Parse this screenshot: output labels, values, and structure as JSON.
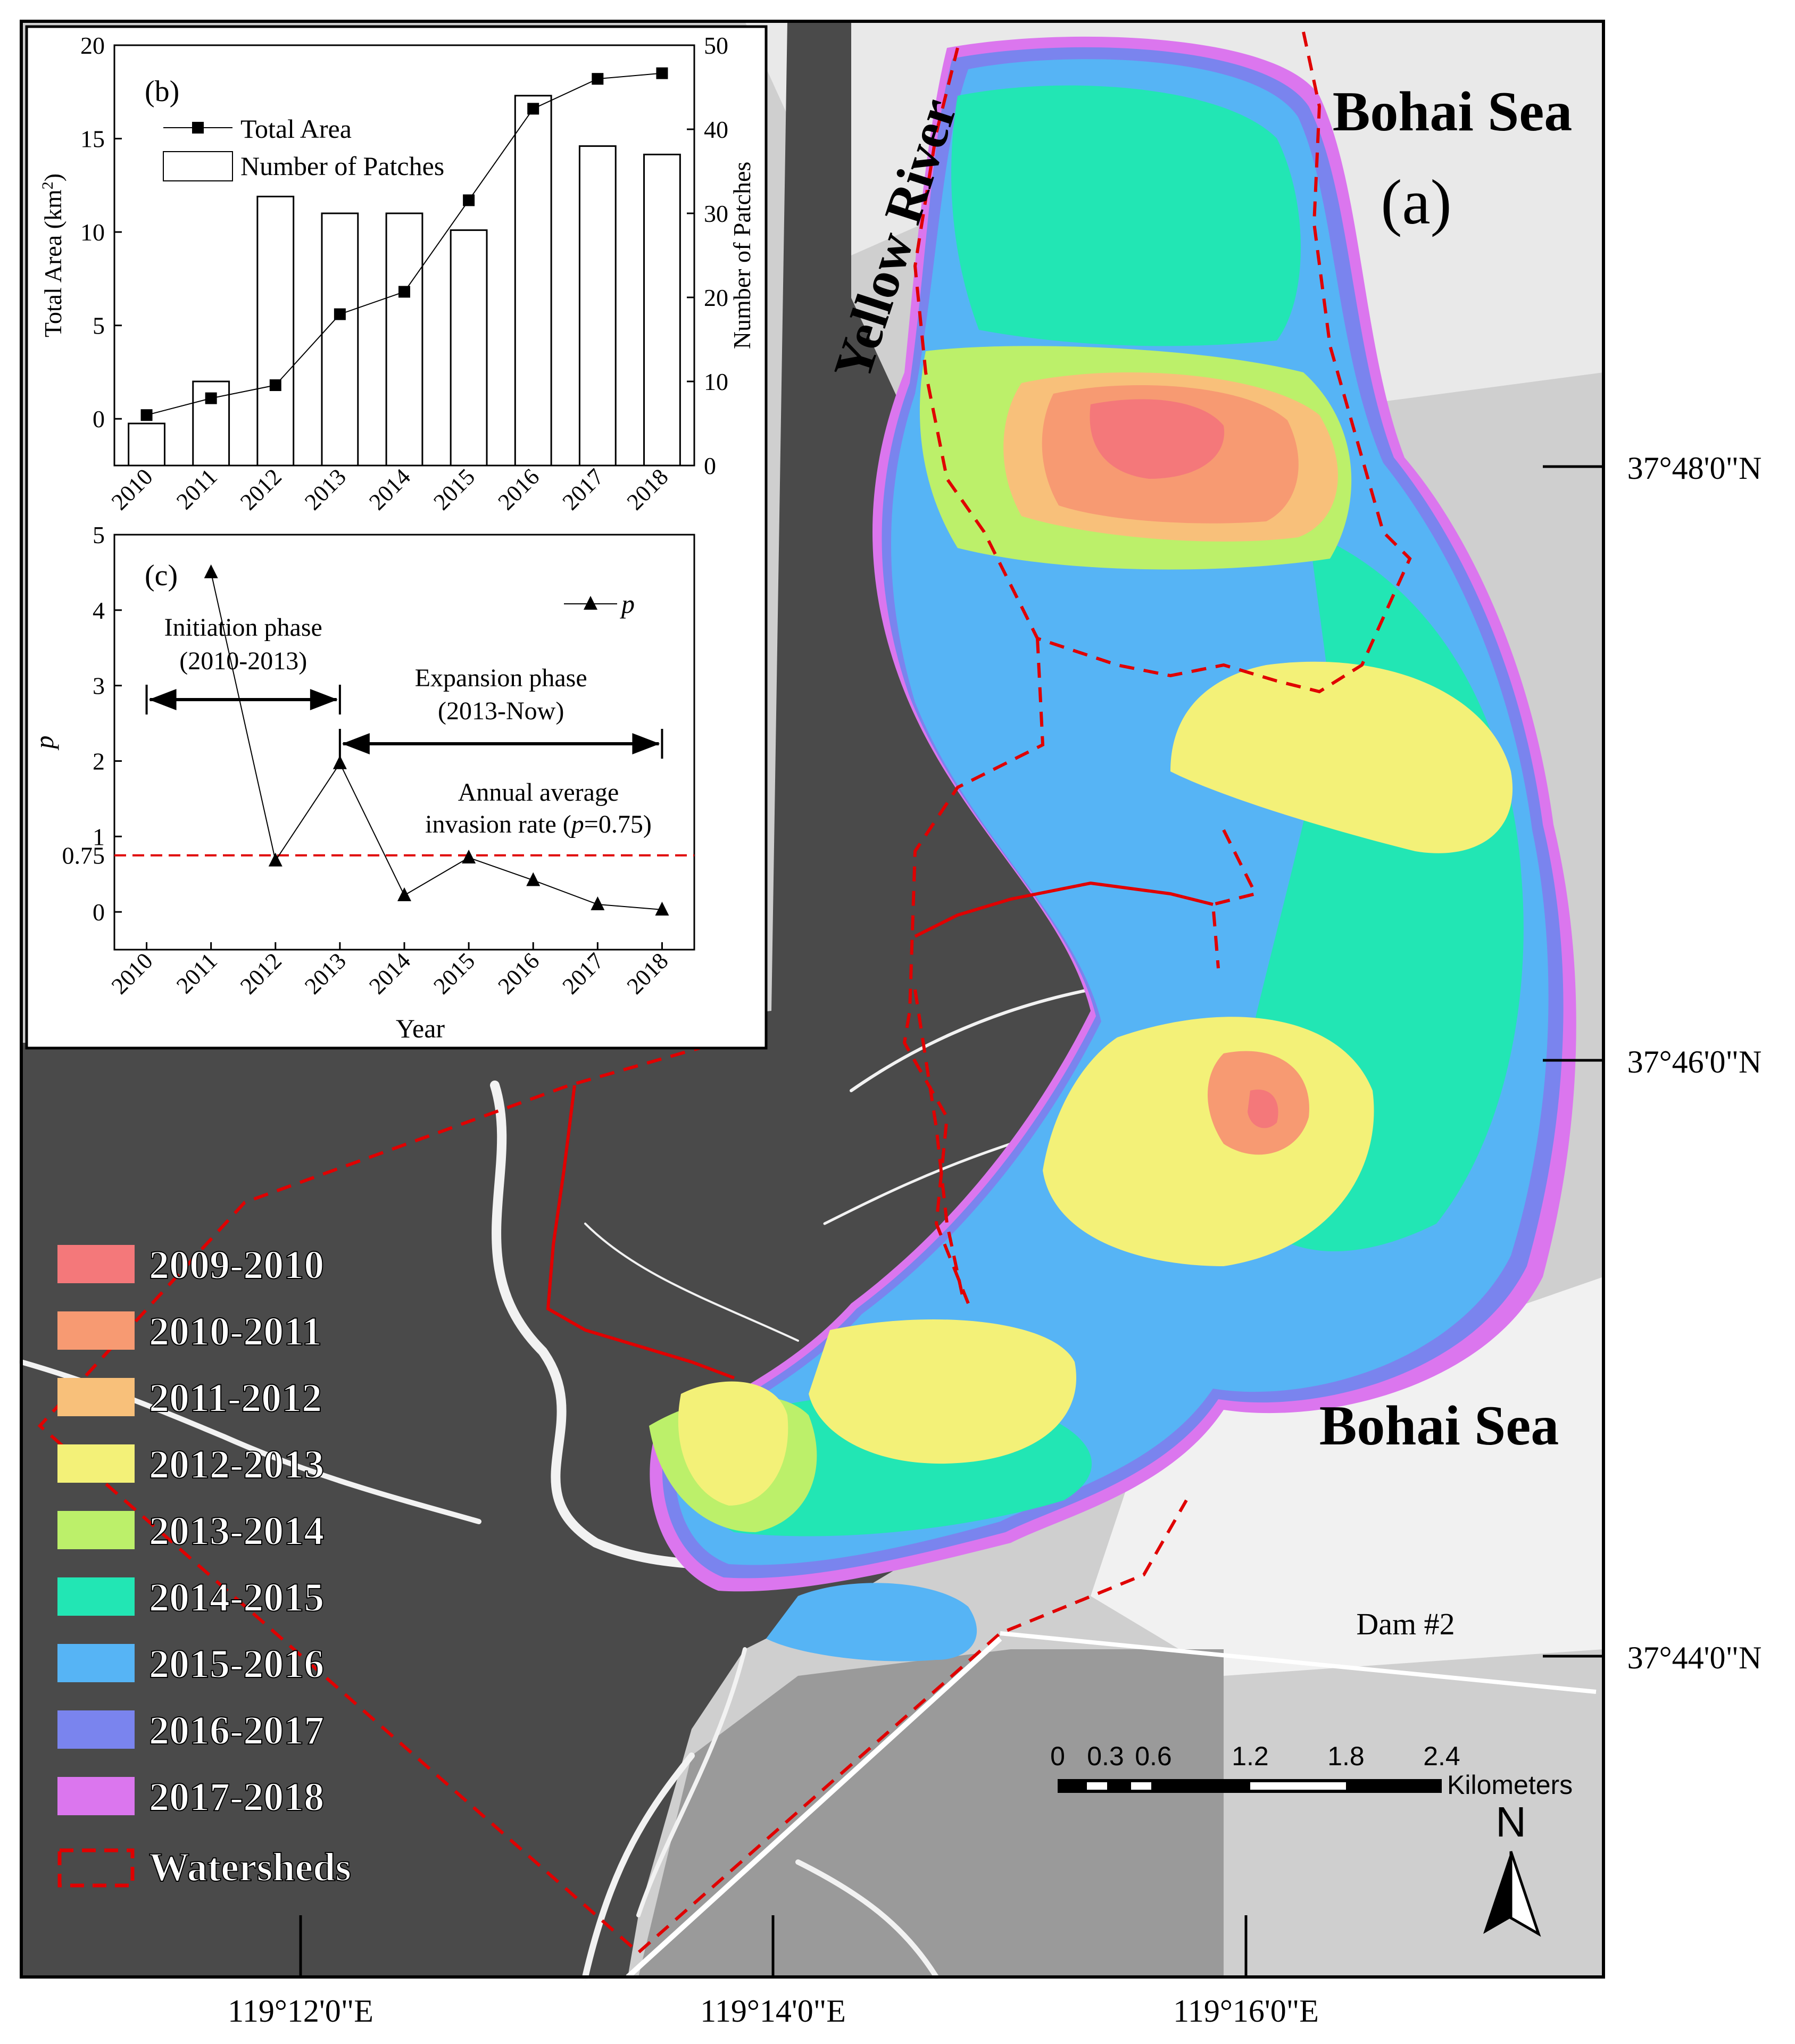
{
  "map": {
    "panel_label": "(a)",
    "place_labels": {
      "sea_top": "Bohai Sea",
      "sea_bottom": "Bohai Sea",
      "river": "Yellow River",
      "dam": "Dam #2"
    },
    "lat_labels": [
      "37°48'0\"N",
      "37°46'0\"N",
      "37°44'0\"N"
    ],
    "lon_labels": [
      "119°12'0\"E",
      "119°14'0\"E",
      "119°16'0\"E"
    ],
    "legend": [
      {
        "label": "2009-2010",
        "color": "#f4787a"
      },
      {
        "label": "2010-2011",
        "color": "#f79a72"
      },
      {
        "label": "2011-2012",
        "color": "#f8c07a"
      },
      {
        "label": "2012-2013",
        "color": "#f3f178"
      },
      {
        "label": "2013-2014",
        "color": "#bcf06a"
      },
      {
        "label": "2014-2015",
        "color": "#22e6b4"
      },
      {
        "label": "2015-2016",
        "color": "#56b4f5"
      },
      {
        "label": "2016-2017",
        "color": "#7a84ee"
      },
      {
        "label": "2017-2018",
        "color": "#db76ee"
      },
      {
        "label": "Watersheds",
        "color": "#e00000"
      }
    ],
    "scale_bar": {
      "ticks": [
        "0",
        "0.3",
        "0.6",
        "1.2",
        "1.8",
        "2.4"
      ],
      "unit": "Kilometers"
    },
    "north_label": "N"
  },
  "chart_data": [
    {
      "type": "bar+line",
      "panel": "(b)",
      "categories": [
        "2010",
        "2011",
        "2012",
        "2013",
        "2014",
        "2015",
        "2016",
        "2017",
        "2018"
      ],
      "ylabel_left": "Total Area (km",
      "ylabel_left_sup": "2",
      "ylabel_left_close": ")",
      "ylabel_right": "Number of Patches",
      "ylim_left": [
        -2.5,
        20
      ],
      "ylim_right": [
        0,
        50
      ],
      "yticks_left": [
        "0",
        "5",
        "10",
        "15",
        "20"
      ],
      "yticks_right": [
        "0",
        "10",
        "20",
        "30",
        "40",
        "50"
      ],
      "legend": [
        "Total Area",
        "Number of Patches"
      ],
      "series": [
        {
          "name": "Total Area",
          "kind": "line",
          "axis": "left",
          "values": [
            0.2,
            1.1,
            1.8,
            5.6,
            6.8,
            11.7,
            16.6,
            18.2,
            18.5
          ]
        },
        {
          "name": "Number of Patches",
          "kind": "bar",
          "axis": "right",
          "values": [
            5,
            10,
            32,
            30,
            30,
            28,
            44,
            38,
            37
          ]
        }
      ]
    },
    {
      "type": "line",
      "panel": "(c)",
      "categories": [
        "2010",
        "2011",
        "2012",
        "2013",
        "2014",
        "2015",
        "2016",
        "2017",
        "2018"
      ],
      "xlabel": "Year",
      "ylabel": "p",
      "ylim": [
        -0.5,
        5
      ],
      "yticks": [
        "0",
        "0.75",
        "1",
        "2",
        "3",
        "4",
        "5"
      ],
      "legend": [
        "p"
      ],
      "series": [
        {
          "name": "p",
          "x": [
            "2011",
            "2012",
            "2013",
            "2014",
            "2015",
            "2016",
            "2017",
            "2018"
          ],
          "values": [
            4.5,
            0.68,
            1.97,
            0.22,
            0.72,
            0.42,
            0.1,
            0.03
          ]
        }
      ],
      "reference_line": {
        "value": 0.75,
        "label_line1": "Annual average",
        "label_line2_prefix": "invasion rate  (",
        "label_line2_var": "p",
        "label_line2_suffix": "=0.75)"
      },
      "phases": [
        {
          "label_line1": "Initiation phase",
          "label_line2": "(2010-2013)",
          "from": "2010",
          "to": "2013"
        },
        {
          "label_line1": "Expansion  phase",
          "label_line2": "(2013-Now)",
          "from": "2013",
          "to": "2018"
        }
      ]
    }
  ]
}
